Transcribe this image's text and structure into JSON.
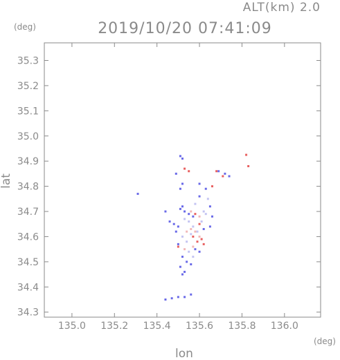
{
  "header": {
    "altitude": "ALT(km) 2.0",
    "timestamp": "2019/10/20 07:41:09"
  },
  "chart_data": {
    "type": "scatter",
    "title": "2019/10/20 07:41:09",
    "xlabel": "lon",
    "ylabel": "lat",
    "x_unit": "(deg)",
    "y_unit": "(deg)",
    "xlim": [
      134.87,
      136.17
    ],
    "ylim": [
      34.28,
      35.37
    ],
    "x_ticks": [
      135.0,
      135.2,
      135.4,
      135.6,
      135.8,
      136.0
    ],
    "x_tick_labels": [
      "135.0",
      "135.2",
      "135.4",
      "135.6",
      "135.8",
      "136.0"
    ],
    "y_ticks": [
      34.3,
      34.4,
      34.5,
      34.6,
      34.7,
      34.8,
      34.9,
      35.0,
      35.1,
      35.2,
      35.3
    ],
    "y_tick_labels": [
      "34.3",
      "34.4",
      "34.5",
      "34.6",
      "34.7",
      "34.8",
      "34.9",
      "35.0",
      "35.1",
      "35.2",
      "35.3"
    ],
    "grid": false,
    "legend": "none",
    "colors": {
      "positive": "#e86060",
      "negative": "#6a6ae8",
      "weak_positive": "#f2b8b8",
      "weak_negative": "#c4c4f2"
    },
    "series": [
      {
        "color": "#6a6ae8",
        "points": [
          [
            135.51,
            34.92
          ],
          [
            135.52,
            34.91
          ],
          [
            135.49,
            34.85
          ],
          [
            135.52,
            34.81
          ],
          [
            135.51,
            34.79
          ],
          [
            135.6,
            34.81
          ],
          [
            135.63,
            34.79
          ],
          [
            135.69,
            34.86
          ],
          [
            135.72,
            34.85
          ],
          [
            135.74,
            34.84
          ],
          [
            135.31,
            34.77
          ],
          [
            135.44,
            34.7
          ],
          [
            135.46,
            34.66
          ],
          [
            135.48,
            34.65
          ],
          [
            135.5,
            34.64
          ],
          [
            135.51,
            34.71
          ],
          [
            135.52,
            34.72
          ],
          [
            135.53,
            34.7
          ],
          [
            135.55,
            34.69
          ],
          [
            135.57,
            34.68
          ],
          [
            135.49,
            34.62
          ],
          [
            135.5,
            34.57
          ],
          [
            135.52,
            34.52
          ],
          [
            135.54,
            34.5
          ],
          [
            135.51,
            34.48
          ],
          [
            135.53,
            34.46
          ],
          [
            135.52,
            34.45
          ],
          [
            135.58,
            34.55
          ],
          [
            135.6,
            34.54
          ],
          [
            135.56,
            34.49
          ],
          [
            135.44,
            34.35
          ],
          [
            135.47,
            34.355
          ],
          [
            135.5,
            34.36
          ],
          [
            135.53,
            34.36
          ],
          [
            135.56,
            34.37
          ],
          [
            135.62,
            34.63
          ],
          [
            135.65,
            34.64
          ],
          [
            135.6,
            34.76
          ],
          [
            135.65,
            34.72
          ],
          [
            135.66,
            34.68
          ]
        ]
      },
      {
        "color": "#e86060",
        "points": [
          [
            135.53,
            34.87
          ],
          [
            135.55,
            34.86
          ],
          [
            135.66,
            34.8
          ],
          [
            135.71,
            34.84
          ],
          [
            135.83,
            34.88
          ],
          [
            135.82,
            34.925
          ],
          [
            135.58,
            34.69
          ],
          [
            135.6,
            34.65
          ],
          [
            135.59,
            34.58
          ],
          [
            135.61,
            34.59
          ],
          [
            135.57,
            34.6
          ],
          [
            135.5,
            34.56
          ],
          [
            135.62,
            34.57
          ],
          [
            135.68,
            34.86
          ]
        ]
      },
      {
        "color": "#c4c4f2",
        "points": [
          [
            135.53,
            34.67
          ],
          [
            135.55,
            34.66
          ],
          [
            135.57,
            34.64
          ],
          [
            135.59,
            34.62
          ],
          [
            135.61,
            34.66
          ],
          [
            135.63,
            34.69
          ],
          [
            135.56,
            34.61
          ],
          [
            135.54,
            34.58
          ],
          [
            135.55,
            34.54
          ],
          [
            135.57,
            34.52
          ],
          [
            135.52,
            34.6
          ],
          [
            135.64,
            34.75
          ],
          [
            135.58,
            34.73
          ],
          [
            135.62,
            34.7
          ]
        ]
      },
      {
        "color": "#f2b8b8",
        "points": [
          [
            135.56,
            34.63
          ],
          [
            135.58,
            34.62
          ],
          [
            135.6,
            34.6
          ],
          [
            135.54,
            34.62
          ],
          [
            135.57,
            34.56
          ],
          [
            135.53,
            34.55
          ],
          [
            135.6,
            34.68
          ],
          [
            135.56,
            34.7
          ]
        ]
      }
    ]
  }
}
